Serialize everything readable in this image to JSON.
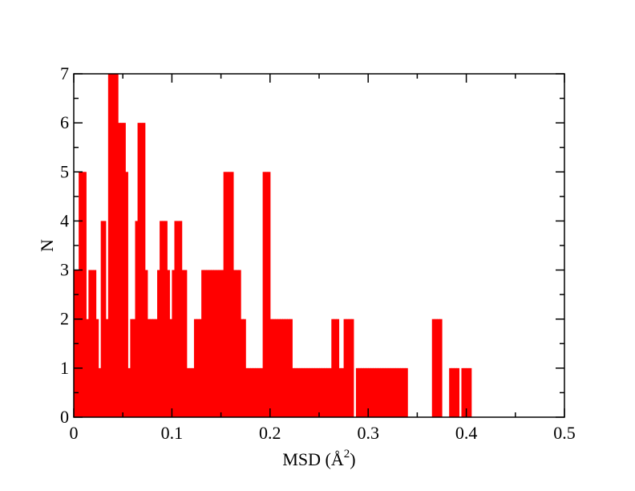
{
  "chart_data": {
    "type": "bar",
    "title": "",
    "xlabel": "MSD (Å",
    "xlabel_sup": "2",
    "xlabel_close": ")",
    "ylabel": "N",
    "xlim": [
      0,
      0.5
    ],
    "ylim": [
      0,
      7
    ],
    "x_ticks": [
      {
        "value": 0,
        "label": "0"
      },
      {
        "value": 0.1,
        "label": "0.1"
      },
      {
        "value": 0.2,
        "label": "0.2"
      },
      {
        "value": 0.3,
        "label": "0.3"
      },
      {
        "value": 0.4,
        "label": "0.4"
      },
      {
        "value": 0.5,
        "label": "0.5"
      }
    ],
    "y_ticks": [
      {
        "value": 0,
        "label": "0"
      },
      {
        "value": 1,
        "label": "1"
      },
      {
        "value": 2,
        "label": "2"
      },
      {
        "value": 3,
        "label": "3"
      },
      {
        "value": 4,
        "label": "4"
      },
      {
        "value": 5,
        "label": "5"
      },
      {
        "value": 6,
        "label": "6"
      },
      {
        "value": 7,
        "label": "7"
      }
    ],
    "bin_width": 0.0025,
    "grid": false,
    "color": "#ff0000",
    "bins": [
      {
        "x": 0.0,
        "n": 3
      },
      {
        "x": 0.0025,
        "n": 3
      },
      {
        "x": 0.005,
        "n": 5
      },
      {
        "x": 0.0075,
        "n": 5
      },
      {
        "x": 0.01,
        "n": 5
      },
      {
        "x": 0.0125,
        "n": 2
      },
      {
        "x": 0.015,
        "n": 3
      },
      {
        "x": 0.0175,
        "n": 3
      },
      {
        "x": 0.02,
        "n": 3
      },
      {
        "x": 0.0225,
        "n": 2
      },
      {
        "x": 0.025,
        "n": 1
      },
      {
        "x": 0.0275,
        "n": 4
      },
      {
        "x": 0.03,
        "n": 4
      },
      {
        "x": 0.0325,
        "n": 2
      },
      {
        "x": 0.035,
        "n": 7
      },
      {
        "x": 0.0375,
        "n": 7
      },
      {
        "x": 0.04,
        "n": 7
      },
      {
        "x": 0.0425,
        "n": 7
      },
      {
        "x": 0.045,
        "n": 6
      },
      {
        "x": 0.0475,
        "n": 6
      },
      {
        "x": 0.05,
        "n": 6
      },
      {
        "x": 0.0525,
        "n": 5
      },
      {
        "x": 0.055,
        "n": 1
      },
      {
        "x": 0.0575,
        "n": 2
      },
      {
        "x": 0.06,
        "n": 2
      },
      {
        "x": 0.0625,
        "n": 4
      },
      {
        "x": 0.065,
        "n": 6
      },
      {
        "x": 0.0675,
        "n": 6
      },
      {
        "x": 0.07,
        "n": 6
      },
      {
        "x": 0.0725,
        "n": 3
      },
      {
        "x": 0.075,
        "n": 2
      },
      {
        "x": 0.0775,
        "n": 2
      },
      {
        "x": 0.08,
        "n": 2
      },
      {
        "x": 0.0825,
        "n": 2
      },
      {
        "x": 0.085,
        "n": 3
      },
      {
        "x": 0.0875,
        "n": 4
      },
      {
        "x": 0.09,
        "n": 4
      },
      {
        "x": 0.0925,
        "n": 4
      },
      {
        "x": 0.095,
        "n": 3
      },
      {
        "x": 0.0975,
        "n": 2
      },
      {
        "x": 0.1,
        "n": 3
      },
      {
        "x": 0.1025,
        "n": 4
      },
      {
        "x": 0.105,
        "n": 4
      },
      {
        "x": 0.1075,
        "n": 4
      },
      {
        "x": 0.11,
        "n": 3
      },
      {
        "x": 0.1125,
        "n": 3
      },
      {
        "x": 0.115,
        "n": 1
      },
      {
        "x": 0.1175,
        "n": 1
      },
      {
        "x": 0.12,
        "n": 1
      },
      {
        "x": 0.1225,
        "n": 2
      },
      {
        "x": 0.125,
        "n": 2
      },
      {
        "x": 0.1275,
        "n": 2
      },
      {
        "x": 0.13,
        "n": 3
      },
      {
        "x": 0.1325,
        "n": 3
      },
      {
        "x": 0.135,
        "n": 3
      },
      {
        "x": 0.1375,
        "n": 3
      },
      {
        "x": 0.14,
        "n": 3
      },
      {
        "x": 0.1425,
        "n": 3
      },
      {
        "x": 0.145,
        "n": 3
      },
      {
        "x": 0.1475,
        "n": 3
      },
      {
        "x": 0.15,
        "n": 3
      },
      {
        "x": 0.1525,
        "n": 5
      },
      {
        "x": 0.155,
        "n": 5
      },
      {
        "x": 0.1575,
        "n": 5
      },
      {
        "x": 0.16,
        "n": 5
      },
      {
        "x": 0.1625,
        "n": 3
      },
      {
        "x": 0.165,
        "n": 3
      },
      {
        "x": 0.1675,
        "n": 3
      },
      {
        "x": 0.17,
        "n": 2
      },
      {
        "x": 0.1725,
        "n": 2
      },
      {
        "x": 0.175,
        "n": 1
      },
      {
        "x": 0.1775,
        "n": 1
      },
      {
        "x": 0.18,
        "n": 1
      },
      {
        "x": 0.1825,
        "n": 1
      },
      {
        "x": 0.185,
        "n": 1
      },
      {
        "x": 0.1875,
        "n": 1
      },
      {
        "x": 0.19,
        "n": 1
      },
      {
        "x": 0.1925,
        "n": 5
      },
      {
        "x": 0.195,
        "n": 5
      },
      {
        "x": 0.1975,
        "n": 5
      },
      {
        "x": 0.2,
        "n": 2
      },
      {
        "x": 0.2025,
        "n": 2
      },
      {
        "x": 0.205,
        "n": 2
      },
      {
        "x": 0.2075,
        "n": 2
      },
      {
        "x": 0.21,
        "n": 2
      },
      {
        "x": 0.2125,
        "n": 2
      },
      {
        "x": 0.215,
        "n": 2
      },
      {
        "x": 0.2175,
        "n": 2
      },
      {
        "x": 0.22,
        "n": 2
      },
      {
        "x": 0.2225,
        "n": 1
      },
      {
        "x": 0.225,
        "n": 1
      },
      {
        "x": 0.2275,
        "n": 1
      },
      {
        "x": 0.23,
        "n": 1
      },
      {
        "x": 0.2325,
        "n": 1
      },
      {
        "x": 0.235,
        "n": 1
      },
      {
        "x": 0.2375,
        "n": 1
      },
      {
        "x": 0.24,
        "n": 1
      },
      {
        "x": 0.2425,
        "n": 1
      },
      {
        "x": 0.245,
        "n": 1
      },
      {
        "x": 0.2475,
        "n": 1
      },
      {
        "x": 0.25,
        "n": 1
      },
      {
        "x": 0.2525,
        "n": 1
      },
      {
        "x": 0.255,
        "n": 1
      },
      {
        "x": 0.2575,
        "n": 1
      },
      {
        "x": 0.26,
        "n": 1
      },
      {
        "x": 0.2625,
        "n": 2
      },
      {
        "x": 0.265,
        "n": 2
      },
      {
        "x": 0.2675,
        "n": 2
      },
      {
        "x": 0.27,
        "n": 1
      },
      {
        "x": 0.2725,
        "n": 1
      },
      {
        "x": 0.275,
        "n": 2
      },
      {
        "x": 0.2775,
        "n": 2
      },
      {
        "x": 0.28,
        "n": 2
      },
      {
        "x": 0.2825,
        "n": 2
      },
      {
        "x": 0.2875,
        "n": 1
      },
      {
        "x": 0.29,
        "n": 1
      },
      {
        "x": 0.2925,
        "n": 1
      },
      {
        "x": 0.295,
        "n": 1
      },
      {
        "x": 0.2975,
        "n": 1
      },
      {
        "x": 0.3,
        "n": 1
      },
      {
        "x": 0.3025,
        "n": 1
      },
      {
        "x": 0.305,
        "n": 1
      },
      {
        "x": 0.3075,
        "n": 1
      },
      {
        "x": 0.31,
        "n": 1
      },
      {
        "x": 0.3125,
        "n": 1
      },
      {
        "x": 0.315,
        "n": 1
      },
      {
        "x": 0.3175,
        "n": 1
      },
      {
        "x": 0.32,
        "n": 1
      },
      {
        "x": 0.3225,
        "n": 1
      },
      {
        "x": 0.325,
        "n": 1
      },
      {
        "x": 0.3275,
        "n": 1
      },
      {
        "x": 0.33,
        "n": 1
      },
      {
        "x": 0.3325,
        "n": 1
      },
      {
        "x": 0.335,
        "n": 1
      },
      {
        "x": 0.3375,
        "n": 1
      },
      {
        "x": 0.365,
        "n": 2
      },
      {
        "x": 0.3675,
        "n": 2
      },
      {
        "x": 0.37,
        "n": 2
      },
      {
        "x": 0.3725,
        "n": 2
      },
      {
        "x": 0.3825,
        "n": 1
      },
      {
        "x": 0.385,
        "n": 1
      },
      {
        "x": 0.3875,
        "n": 1
      },
      {
        "x": 0.39,
        "n": 1
      },
      {
        "x": 0.395,
        "n": 1
      },
      {
        "x": 0.3975,
        "n": 1
      },
      {
        "x": 0.4,
        "n": 1
      },
      {
        "x": 0.4025,
        "n": 1
      }
    ]
  }
}
